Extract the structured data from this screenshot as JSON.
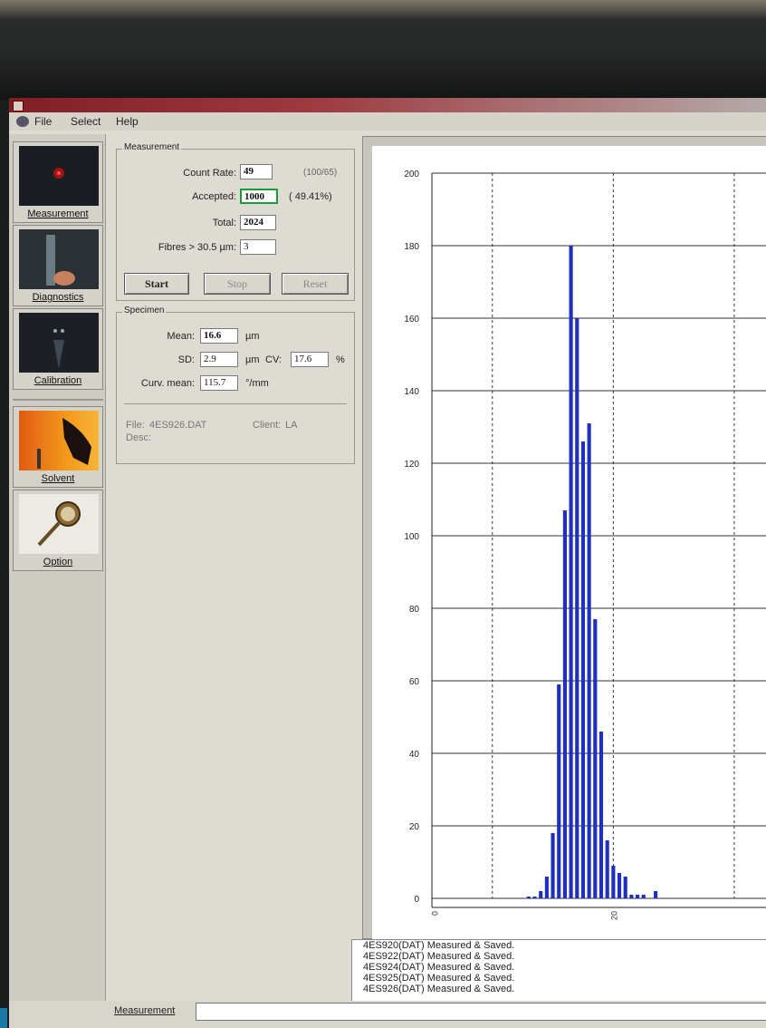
{
  "menu": {
    "file": "File",
    "select": "Select",
    "help": "Help"
  },
  "toolbar": {
    "items": [
      {
        "label": "Measurement",
        "icon": "red-laser-icon"
      },
      {
        "label": "Diagnostics",
        "icon": "hand-probe-icon"
      },
      {
        "label": "Calibration",
        "icon": "cell-icon"
      },
      {
        "label": "Solvent",
        "icon": "solvent-hand-icon"
      },
      {
        "label": "Option",
        "icon": "compass-icon"
      }
    ]
  },
  "measurement": {
    "group_title": "Measurement",
    "count_rate_label": "Count Rate:",
    "count_rate": "49",
    "count_rate_extra": "(100/65)",
    "accepted_label": "Accepted:",
    "accepted": "1000",
    "accepted_pct": "( 49.41%)",
    "total_label": "Total:",
    "total": "2024",
    "fibres_label": "Fibres > 30.5 µm:",
    "fibres": "3",
    "start": "Start",
    "stop": "Stop",
    "reset": "Reset"
  },
  "specimen": {
    "group_title": "Specimen",
    "mean_label": "Mean:",
    "mean": "16.6",
    "mean_unit": "µm",
    "sd_label": "SD:",
    "sd": "2.9",
    "sd_unit": "µm",
    "cv_label": "CV:",
    "cv": "17.6",
    "cv_unit": "%",
    "curv_label": "Curv. mean:",
    "curv": "115.7",
    "curv_unit": "°/mm",
    "file_label": "File:",
    "file": "4ES926.DAT",
    "client_label": "Client:",
    "client": "LA",
    "desc_label": "Desc:"
  },
  "log": {
    "lines": [
      "4ES920(DAT) Measured & Saved.",
      "4ES922(DAT) Measured & Saved.",
      "4ES924(DAT) Measured & Saved.",
      "4ES925(DAT) Measured & Saved.",
      "4ES926(DAT) Measured & Saved."
    ]
  },
  "status": {
    "label": "Measurement"
  },
  "colors": {
    "bar": "#1f2fbf",
    "accent": "#1a9b3a"
  },
  "chart_data": {
    "type": "bar",
    "y_ticks": [
      0,
      20,
      40,
      60,
      80,
      100,
      120,
      140,
      160,
      180,
      200
    ],
    "ylim": [
      0,
      200
    ],
    "x_tick_labels": [
      "0",
      "20"
    ],
    "x": [
      9,
      9.5,
      10,
      10.5,
      11,
      11.5,
      12,
      12.5,
      13,
      13.5,
      14,
      14.5,
      15,
      15.5,
      16,
      16.5,
      17,
      17.5,
      18,
      18.5,
      19,
      19.5,
      20,
      20.5,
      21,
      21.5,
      22,
      22.5,
      23,
      23.5,
      24,
      24.5,
      25,
      25.5,
      26,
      26.5,
      27,
      27.5,
      28,
      28.5,
      29,
      29.5
    ],
    "values": [
      0,
      0,
      0,
      0,
      0,
      0,
      0,
      0,
      0,
      0,
      0,
      0,
      0.5,
      0.5,
      2,
      6,
      18,
      59,
      107,
      180,
      160,
      126,
      131,
      77,
      46,
      16,
      9,
      7,
      6,
      1,
      1,
      1,
      0,
      2,
      0,
      0,
      0,
      0,
      0,
      0,
      0,
      0
    ],
    "grid": true
  }
}
